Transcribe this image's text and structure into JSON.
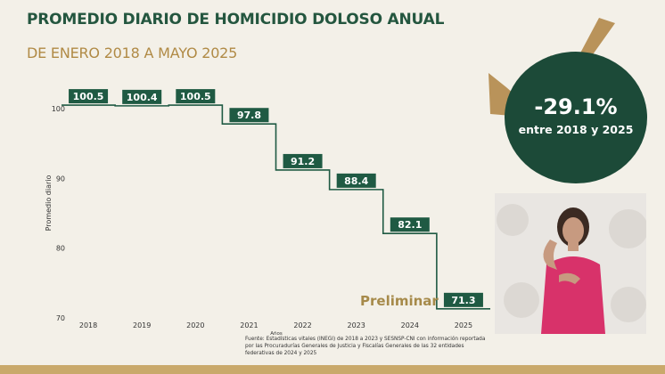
{
  "header": {
    "title": "PROMEDIO DIARIO DE HOMICIDIO DOLOSO ANUAL",
    "subtitle": "DE ENERO 2018 A MAYO 2025"
  },
  "callout": {
    "percent": "-29.1%",
    "caption": "entre 2018 y 2025",
    "circle_color": "#1c4a38",
    "arrow_color": "#b9935a"
  },
  "annotation": "Preliminar",
  "source": "Fuente: Estadísticas vitales (INEGI) de 2018 a 2023 y SESNSP-CNI con información reportada por las Procuradurías Generales de Justicia y Fiscalías Generales de las 32 entidades federativas de 2024 y 2025",
  "chart_data": {
    "type": "line",
    "step": true,
    "title": "PROMEDIO DIARIO DE HOMICIDIO DOLOSO ANUAL",
    "subtitle": "DE ENERO 2018 A MAYO 2025",
    "xlabel": "Años",
    "ylabel": "Promedio diario",
    "categories": [
      "2018",
      "2019",
      "2020",
      "2021",
      "2022",
      "2023",
      "2024",
      "2025"
    ],
    "values": [
      100.5,
      100.4,
      100.5,
      97.8,
      91.2,
      88.4,
      82.1,
      71.3
    ],
    "data_labels": [
      "100.5",
      "100.4",
      "100.5",
      "97.8",
      "91.2",
      "88.4",
      "82.1",
      "71.3"
    ],
    "yticks": [
      70,
      80,
      90,
      100
    ],
    "ylim": [
      70,
      102
    ],
    "grid": false,
    "line_color": "#1f5a43",
    "label_bg": "#1f5a43"
  },
  "interpreter": {
    "label": "sign-language interpreter"
  }
}
